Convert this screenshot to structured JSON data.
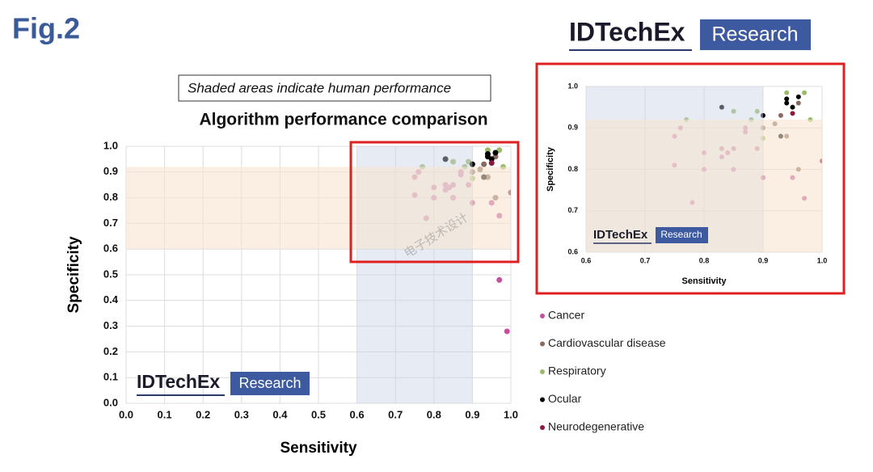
{
  "figure_label": "Fig.2",
  "logo": {
    "brand": "IDTechEx",
    "tag": "Research"
  },
  "watermark": "电子技术设计",
  "chart_data": [
    {
      "type": "scatter",
      "title": "Algorithm performance comparison",
      "note": "Shaded areas indicate human performance",
      "x_label": "Sensitivity",
      "y_label": "Specificity",
      "xlim": [
        0,
        1
      ],
      "ylim": [
        0,
        1
      ],
      "xticks": [
        {
          "value": 0,
          "label": "0.0"
        },
        0.1,
        0.2,
        0.3,
        0.4,
        0.5,
        0.6,
        0.7,
        0.8,
        0.9,
        {
          "value": 1,
          "label": "1.0"
        }
      ],
      "yticks": [
        {
          "value": 0,
          "label": "0.0"
        },
        0.1,
        0.2,
        0.3,
        0.4,
        0.5,
        0.6,
        0.7,
        0.8,
        0.9,
        {
          "value": 1,
          "label": "1.0"
        }
      ],
      "grid": true,
      "shaded": {
        "x": [
          0.6,
          0.9
        ],
        "y": [
          0.6,
          0.92
        ]
      },
      "series": [
        {
          "name": "Cancer",
          "color": "#c4509e",
          "x": [
            0.75,
            0.75,
            0.76,
            0.78,
            0.8,
            0.8,
            0.83,
            0.83,
            0.84,
            0.85,
            0.85,
            0.87,
            0.87,
            0.89,
            0.9,
            0.95,
            0.97,
            0.97,
            0.99
          ],
          "y": [
            0.81,
            0.88,
            0.9,
            0.72,
            0.84,
            0.8,
            0.83,
            0.85,
            0.84,
            0.85,
            0.8,
            0.9,
            0.89,
            0.85,
            0.78,
            0.78,
            0.73,
            0.48,
            0.28
          ]
        },
        {
          "name": "Cardiovascular disease",
          "color": "#8a6a60",
          "x": [
            0.93,
            0.92,
            0.94,
            0.96,
            0.96,
            0.9
          ],
          "y": [
            0.93,
            0.91,
            0.88,
            0.8,
            0.96,
            0.9
          ]
        },
        {
          "name": "Respiratory",
          "color": "#9bbb6a",
          "x": [
            0.77,
            0.85,
            0.89,
            0.9,
            0.94,
            0.97,
            0.98,
            0.88
          ],
          "y": [
            0.92,
            0.94,
            0.94,
            0.875,
            0.985,
            0.985,
            0.92,
            0.92
          ]
        },
        {
          "name": "Ocular",
          "color": "#000000",
          "x": [
            0.83,
            0.9,
            0.93,
            0.94,
            0.94,
            0.95,
            0.96
          ],
          "y": [
            0.95,
            0.93,
            0.88,
            0.97,
            0.96,
            0.95,
            0.975
          ]
        },
        {
          "name": "Neurodegenerative",
          "color": "#8b1a3a",
          "x": [
            1.0,
            0.95
          ],
          "y": [
            0.82,
            0.935
          ]
        }
      ]
    },
    {
      "type": "scatter",
      "x_label": "Sensitivity",
      "y_label": "Specificity",
      "xlim": [
        0.6,
        1
      ],
      "ylim": [
        0.6,
        1
      ],
      "xticks": [
        0.6,
        0.7,
        0.8,
        0.9,
        {
          "value": 1,
          "label": "1.0"
        }
      ],
      "yticks": [
        0.6,
        0.7,
        0.8,
        0.9,
        {
          "value": 1,
          "label": "1.0"
        }
      ],
      "grid": true
    }
  ]
}
